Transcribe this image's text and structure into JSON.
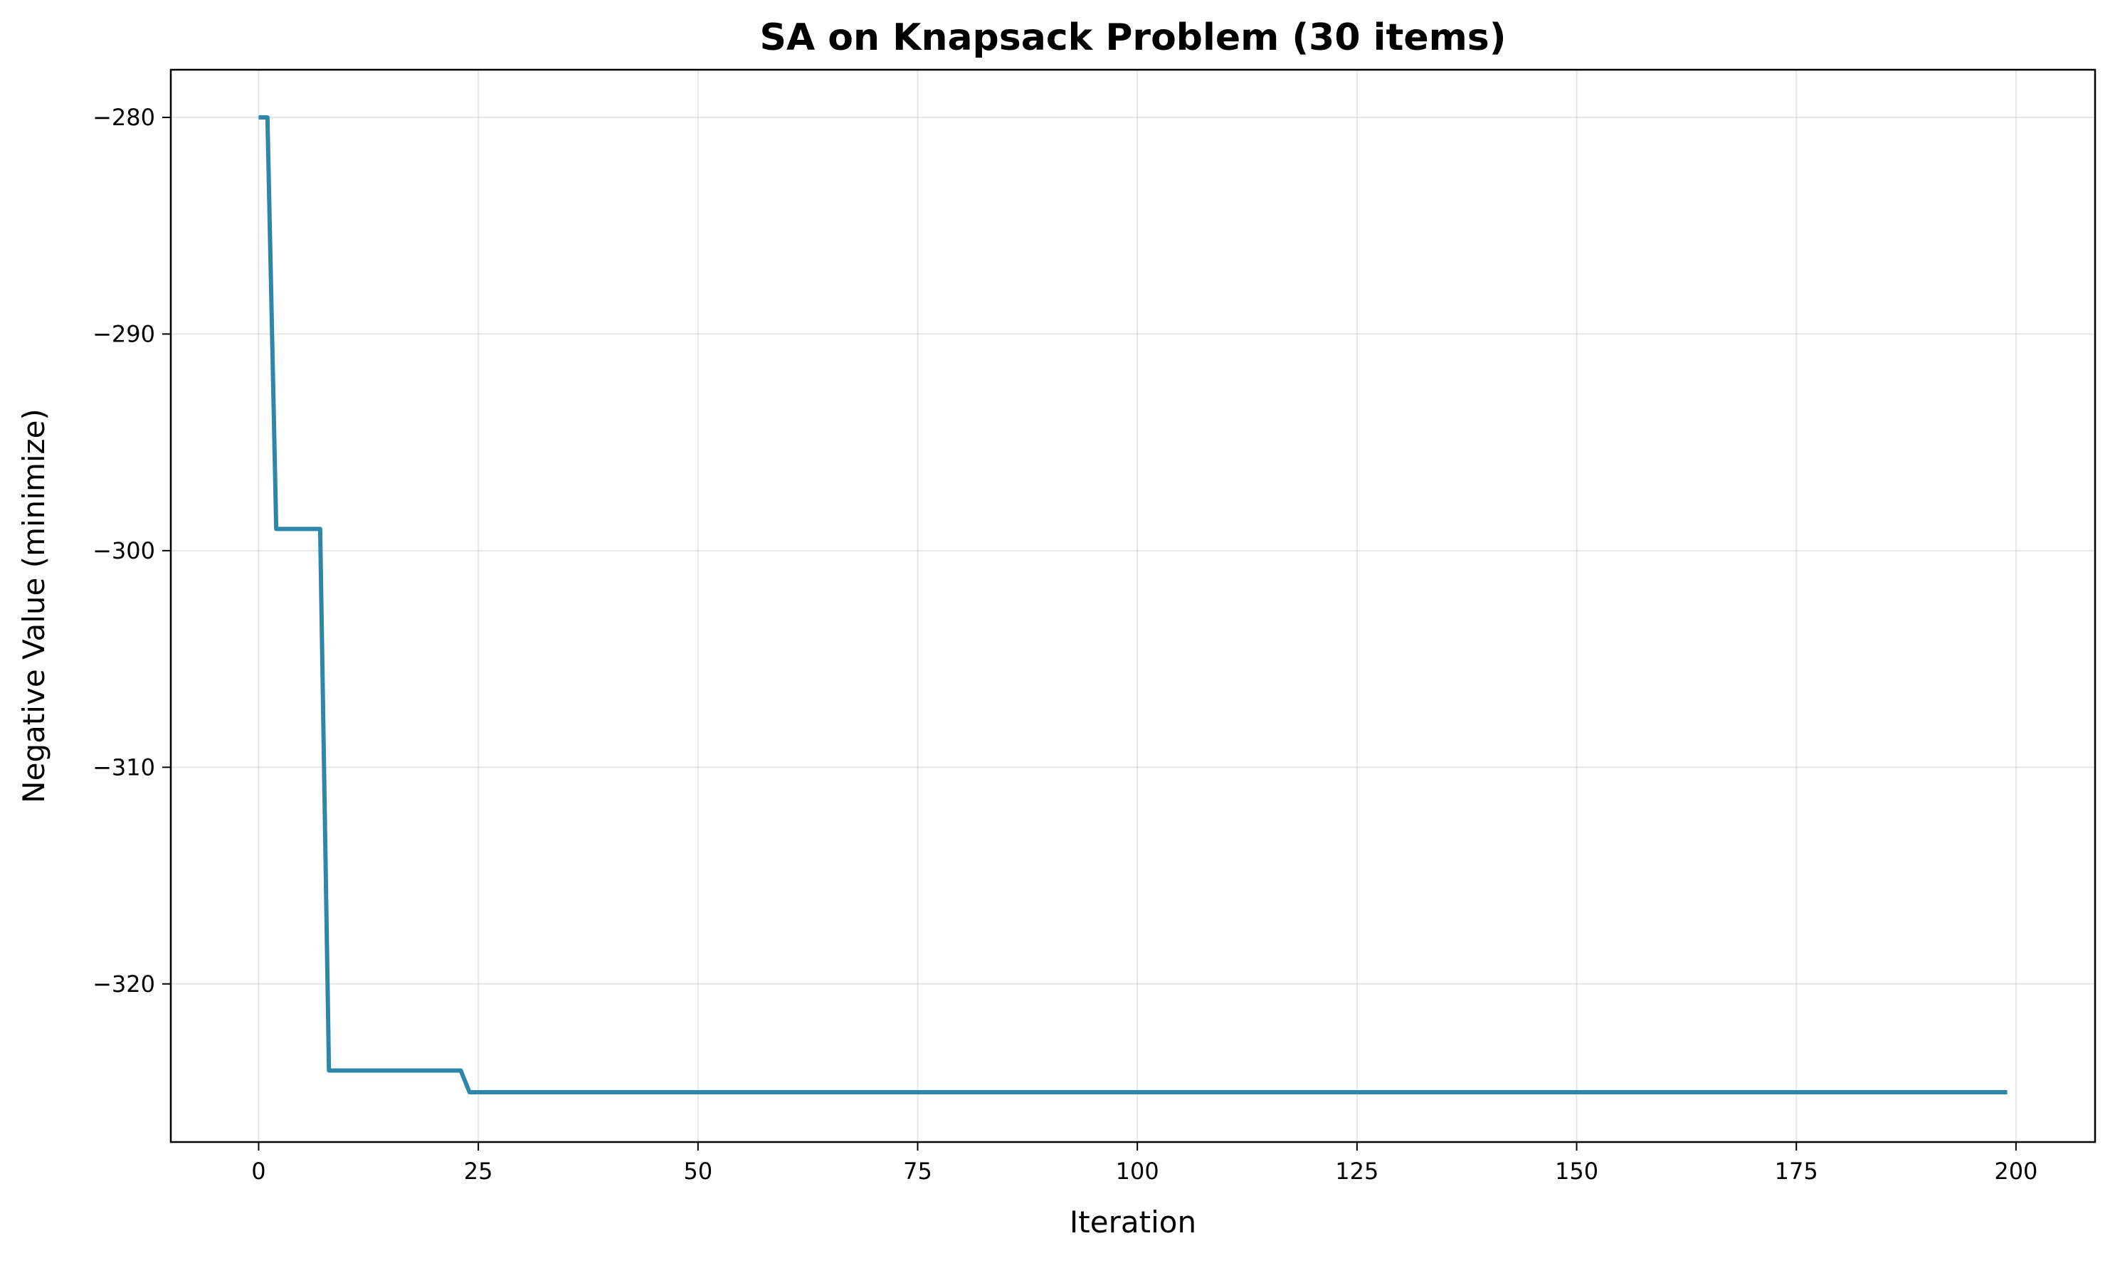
{
  "chart_data": {
    "type": "line",
    "title": "SA on Knapsack Problem (30 items)",
    "xlabel": "Iteration",
    "ylabel": "Negative Value (minimize)",
    "xlim": [
      -10,
      209
    ],
    "ylim": [
      -327.3,
      -277.8
    ],
    "xticks": [
      0,
      25,
      50,
      75,
      100,
      125,
      150,
      175,
      200
    ],
    "yticks": [
      -280,
      -290,
      -300,
      -310,
      -320
    ],
    "grid": true,
    "legend": "none",
    "series": [
      {
        "color": "#2e86ab",
        "points": [
          [
            0,
            -280
          ],
          [
            1,
            -280
          ],
          [
            2,
            -299
          ],
          [
            7,
            -299
          ],
          [
            8,
            -324
          ],
          [
            23,
            -324
          ],
          [
            24,
            -325
          ],
          [
            199,
            -325
          ]
        ]
      }
    ]
  }
}
